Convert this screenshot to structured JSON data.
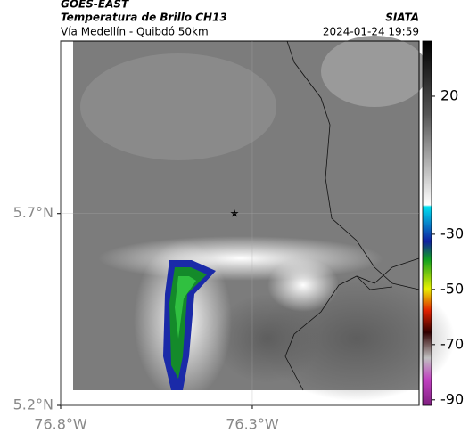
{
  "header": {
    "source": "GOES-EAST",
    "title": "Temperatura de Brillo CH13",
    "subtitle": "Vía Medellín - Quibdó 50km",
    "agency": "SIATA",
    "datetime": "2024-01-24 19:59"
  },
  "map": {
    "xlim": [
      -76.8,
      -75.865
    ],
    "ylim": [
      5.2,
      6.15
    ],
    "xticks": [
      {
        "value": -76.8,
        "label": "76.8°W"
      },
      {
        "value": -76.3,
        "label": "76.3°W"
      }
    ],
    "yticks": [
      {
        "value": 5.7,
        "label": "5.7°N"
      },
      {
        "value": 5.2,
        "label": "5.2°N"
      }
    ]
  },
  "colorbar": {
    "lim": [
      -92,
      40
    ],
    "ticks": [
      20,
      -30,
      -50,
      -70,
      -90
    ]
  }
}
